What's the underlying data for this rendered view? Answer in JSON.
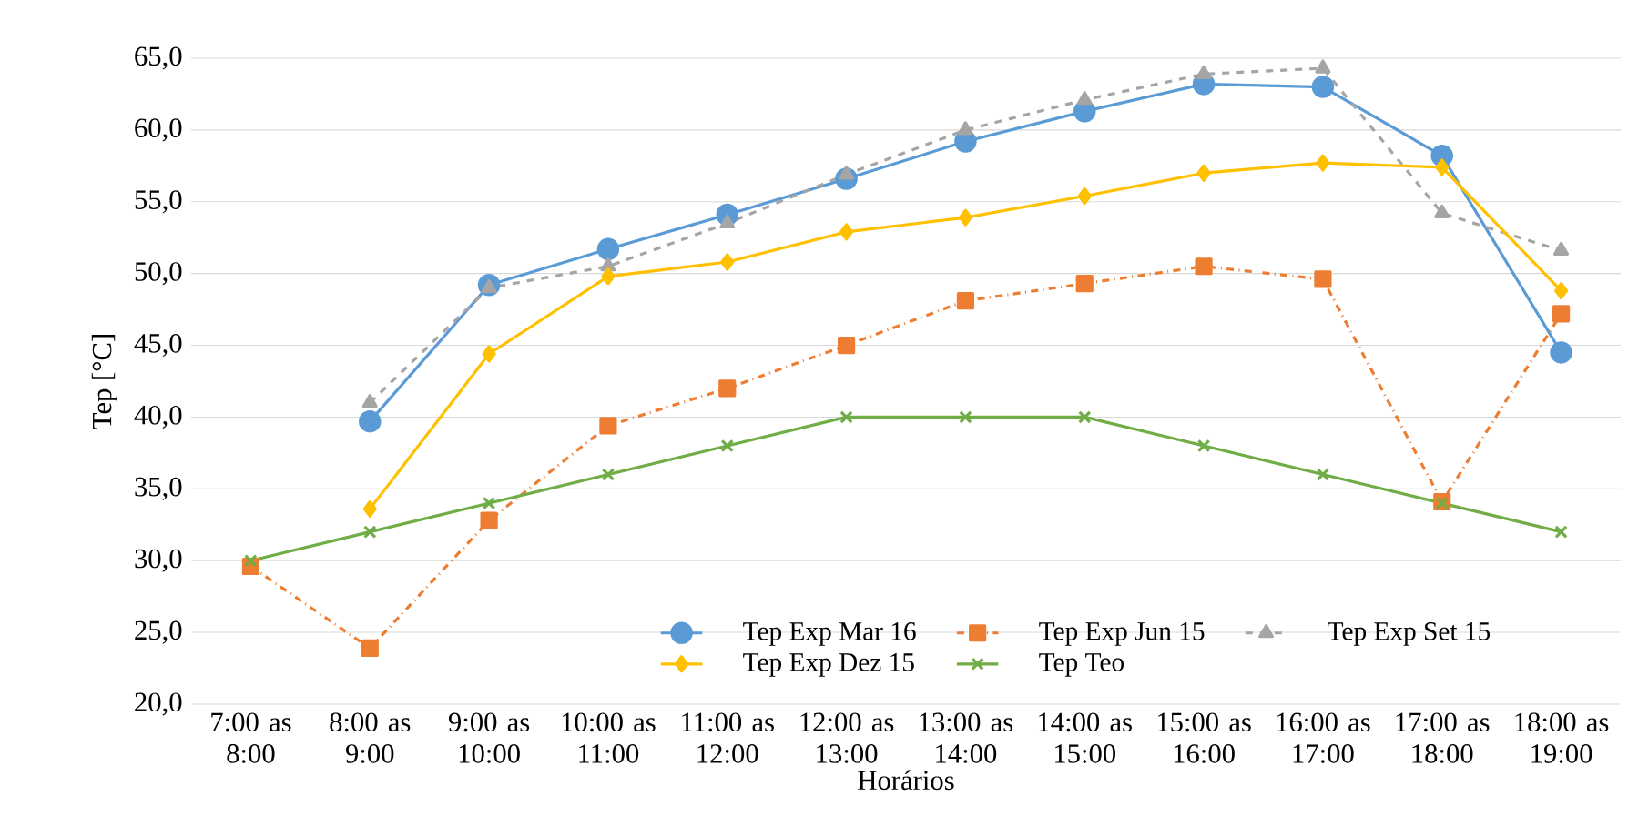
{
  "chart_data": {
    "type": "line",
    "xlabel": "Horários",
    "ylabel": "Tep [°C]",
    "categories": [
      "7:00 as 8:00",
      "8:00 as 9:00",
      "9:00 as 10:00",
      "10:00 as 11:00",
      "11:00 as 12:00",
      "12:00 as 13:00",
      "13:00 as 14:00",
      "14:00 as 15:00",
      "15:00 as 16:00",
      "16:00 as 17:00",
      "17:00 as 18:00",
      "18:00 as 19:00"
    ],
    "series": [
      {
        "name": "Tep Exp Mar 16",
        "color": "#5b9bd5",
        "marker": "circle",
        "line_style": "solid",
        "values": [
          null,
          39.7,
          49.2,
          51.7,
          54.1,
          56.6,
          59.2,
          61.3,
          63.2,
          63.0,
          58.2,
          44.5
        ]
      },
      {
        "name": "Tep Exp Jun 15",
        "color": "#ed7d31",
        "marker": "square",
        "line_style": "dashdot",
        "values": [
          29.6,
          23.9,
          32.8,
          39.4,
          42.0,
          45.0,
          48.1,
          49.3,
          50.5,
          49.6,
          34.1,
          47.2
        ]
      },
      {
        "name": "Tep Exp Set 15",
        "color": "#a5a5a5",
        "marker": "triangle",
        "line_style": "dashed",
        "values": [
          null,
          41.0,
          49.0,
          50.5,
          53.5,
          56.9,
          60.0,
          62.1,
          63.9,
          64.3,
          54.2,
          51.6
        ]
      },
      {
        "name": "Tep Exp Dez 15",
        "color": "#ffc000",
        "marker": "diamond",
        "line_style": "solid",
        "values": [
          null,
          33.6,
          44.4,
          49.8,
          50.8,
          52.9,
          53.9,
          55.4,
          57.0,
          57.7,
          57.4,
          48.8
        ]
      },
      {
        "name": "Tep Teo",
        "color": "#70ad47",
        "marker": "cross",
        "line_style": "solid",
        "values": [
          30,
          32,
          34,
          36,
          38,
          40,
          40,
          40,
          38,
          36,
          34,
          32
        ]
      }
    ],
    "ylim": [
      20,
      65
    ],
    "yticks": [
      {
        "value": 20,
        "label": "20,0"
      },
      {
        "value": 25,
        "label": "25,0"
      },
      {
        "value": 30,
        "label": "30,0"
      },
      {
        "value": 35,
        "label": "35,0"
      },
      {
        "value": 40,
        "label": "40,0"
      },
      {
        "value": 45,
        "label": "45,0"
      },
      {
        "value": 50,
        "label": "50,0"
      },
      {
        "value": 55,
        "label": "55,0"
      },
      {
        "value": 60,
        "label": "60,0"
      },
      {
        "value": 65,
        "label": "65,0"
      }
    ],
    "grid": "y",
    "legend": "bottom"
  }
}
